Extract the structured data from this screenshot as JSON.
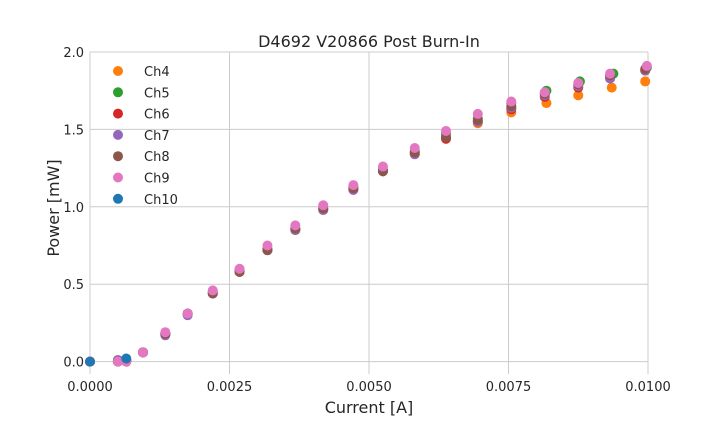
{
  "chart_data": {
    "type": "scatter",
    "title": "D4692 V20866 Post Burn-In",
    "xlabel": "Current [A]",
    "ylabel": "Power [mW]",
    "xlim": [
      0,
      0.01
    ],
    "ylim": [
      -0.08,
      2.0
    ],
    "x_ticks": [
      0,
      0.0025,
      0.005,
      0.0075,
      0.01
    ],
    "x_tick_labels": [
      "0.0000",
      "0.0025",
      "0.0050",
      "0.0075",
      "0.0100"
    ],
    "y_ticks": [
      0,
      0.5,
      1.0,
      1.5,
      2.0
    ],
    "y_tick_labels": [
      "0.0",
      "0.5",
      "1.0",
      "1.5",
      "2.0"
    ],
    "grid": true,
    "legend": "top-left",
    "series": [
      {
        "name": "Ch4",
        "color": "#ff7f0e",
        "x": [
          0,
          0.0005,
          0.00065,
          0.00095,
          0.00135,
          0.00175,
          0.0022,
          0.00268,
          0.00318,
          0.00368,
          0.00418,
          0.00472,
          0.00525,
          0.00582,
          0.00638,
          0.00695,
          0.00755,
          0.00818,
          0.00875,
          0.00935,
          0.00995
        ],
        "y": [
          0.0,
          0.0,
          0.0,
          0.06,
          0.18,
          0.31,
          0.45,
          0.59,
          0.73,
          0.86,
          1.0,
          1.13,
          1.24,
          1.35,
          1.44,
          1.54,
          1.61,
          1.67,
          1.72,
          1.77,
          1.81
        ]
      },
      {
        "name": "Ch5",
        "color": "#2ca02c",
        "x": [
          0,
          0.0005,
          0.00065,
          0.00095,
          0.00135,
          0.00175,
          0.0022,
          0.00268,
          0.00318,
          0.00368,
          0.00418,
          0.00472,
          0.00525,
          0.00582,
          0.00638,
          0.00695,
          0.00755,
          0.00818,
          0.00878,
          0.00938,
          0.00998
        ],
        "y": [
          0.0,
          0.01,
          0.01,
          0.06,
          0.18,
          0.31,
          0.45,
          0.59,
          0.73,
          0.86,
          0.99,
          1.12,
          1.24,
          1.36,
          1.47,
          1.57,
          1.67,
          1.75,
          1.81,
          1.86,
          1.9
        ]
      },
      {
        "name": "Ch6",
        "color": "#d62728",
        "x": [
          0,
          0.0005,
          0.00065,
          0.00095,
          0.00135,
          0.00175,
          0.0022,
          0.00268,
          0.00318,
          0.00368,
          0.00418,
          0.00472,
          0.00525,
          0.00582,
          0.00638,
          0.00695,
          0.00755,
          0.00815,
          0.00875,
          0.00932,
          0.00995
        ],
        "y": [
          0.0,
          0.0,
          0.0,
          0.06,
          0.18,
          0.31,
          0.44,
          0.58,
          0.72,
          0.85,
          0.98,
          1.11,
          1.23,
          1.34,
          1.44,
          1.55,
          1.63,
          1.71,
          1.77,
          1.83,
          1.88
        ]
      },
      {
        "name": "Ch7",
        "color": "#9467bd",
        "x": [
          0,
          0.0005,
          0.00065,
          0.00095,
          0.00135,
          0.00175,
          0.0022,
          0.00268,
          0.00318,
          0.00368,
          0.00418,
          0.00472,
          0.00525,
          0.00582,
          0.00638,
          0.00695,
          0.00755,
          0.00815,
          0.00875,
          0.00932,
          0.00995
        ],
        "y": [
          0.0,
          0.01,
          0.01,
          0.06,
          0.17,
          0.3,
          0.44,
          0.58,
          0.72,
          0.85,
          0.98,
          1.11,
          1.23,
          1.34,
          1.45,
          1.55,
          1.64,
          1.72,
          1.78,
          1.83,
          1.88
        ]
      },
      {
        "name": "Ch8",
        "color": "#8c564b",
        "x": [
          0,
          0.0005,
          0.00065,
          0.00095,
          0.00135,
          0.00175,
          0.0022,
          0.00268,
          0.00318,
          0.00368,
          0.00418,
          0.00472,
          0.00525,
          0.00582,
          0.00638,
          0.00695,
          0.00755,
          0.00815,
          0.00875,
          0.00932,
          0.00995
        ],
        "y": [
          0.0,
          0.0,
          0.01,
          0.06,
          0.18,
          0.31,
          0.44,
          0.58,
          0.72,
          0.86,
          0.99,
          1.12,
          1.23,
          1.35,
          1.45,
          1.56,
          1.65,
          1.73,
          1.79,
          1.85,
          1.89
        ]
      },
      {
        "name": "Ch9",
        "color": "#e377c2",
        "x": [
          0,
          0.0005,
          0.00065,
          0.00095,
          0.00135,
          0.00175,
          0.0022,
          0.00268,
          0.00318,
          0.00368,
          0.00418,
          0.00472,
          0.00525,
          0.00582,
          0.00638,
          0.00695,
          0.00755,
          0.00815,
          0.00875,
          0.00932,
          0.00998
        ],
        "y": [
          0.0,
          0.0,
          0.0,
          0.06,
          0.19,
          0.31,
          0.46,
          0.6,
          0.75,
          0.88,
          1.01,
          1.14,
          1.26,
          1.38,
          1.49,
          1.6,
          1.68,
          1.74,
          1.8,
          1.86,
          1.91
        ]
      },
      {
        "name": "Ch10",
        "color": "#1f77b4",
        "x": [
          0,
          0.00065
        ],
        "y": [
          0.0,
          0.02
        ]
      }
    ]
  }
}
